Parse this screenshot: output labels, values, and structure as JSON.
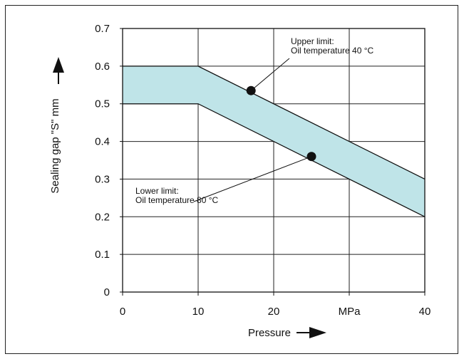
{
  "chart_data": {
    "type": "area",
    "xlabel": "Pressure",
    "ylabel": "Sealing gap \"S\"  mm",
    "xlim": [
      0,
      40
    ],
    "ylim": [
      0,
      0.7
    ],
    "x_ticks": [
      0,
      10,
      20,
      40
    ],
    "x_unit_label": "MPa",
    "y_ticks": [
      0,
      0.1,
      0.2,
      0.3,
      0.4,
      0.5,
      0.6,
      0.7
    ],
    "grid": true,
    "band": {
      "color": "#bfe4e8",
      "upper": {
        "x": [
          0,
          10,
          40
        ],
        "y": [
          0.6,
          0.6,
          0.3
        ]
      },
      "lower": {
        "x": [
          0,
          10,
          40
        ],
        "y": [
          0.5,
          0.5,
          0.2
        ]
      }
    },
    "annotations": [
      {
        "lines": [
          "Upper limit:",
          "Oil temperature 40 °C"
        ],
        "point": {
          "x": 17,
          "y": 0.535
        }
      },
      {
        "lines": [
          "Lower limit:",
          "Oil temperature 80 °C"
        ],
        "point": {
          "x": 25,
          "y": 0.36
        }
      }
    ]
  }
}
